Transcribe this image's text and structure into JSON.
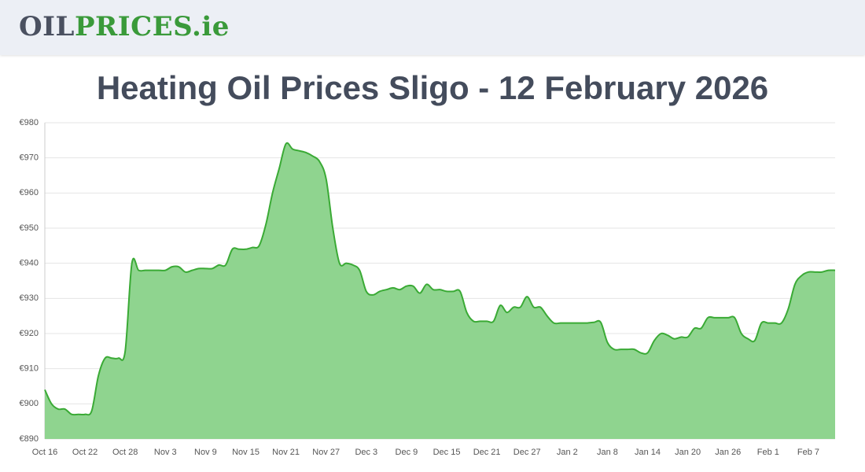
{
  "header": {
    "logo": [
      "OIL",
      "PRICES.ie"
    ]
  },
  "chart_data": {
    "type": "area",
    "title": "Heating Oil Prices Sligo - 12 February 2026",
    "color": "#3aaa35",
    "fill": "#8fd48f",
    "grid": true,
    "ylim": [
      890,
      980
    ],
    "yticks": [
      {
        "value": 890,
        "label": "€890"
      },
      {
        "value": 900,
        "label": "€900"
      },
      {
        "value": 910,
        "label": "€910"
      },
      {
        "value": 920,
        "label": "€920"
      },
      {
        "value": 930,
        "label": "€930"
      },
      {
        "value": 940,
        "label": "€940"
      },
      {
        "value": 950,
        "label": "€950"
      },
      {
        "value": 960,
        "label": "€960"
      },
      {
        "value": 970,
        "label": "€970"
      },
      {
        "value": 980,
        "label": "€980"
      }
    ],
    "categories": [
      "Oct 16",
      null,
      null,
      null,
      null,
      null,
      "Oct 22",
      null,
      null,
      null,
      null,
      null,
      "Oct 28",
      null,
      null,
      null,
      null,
      null,
      "Nov 3",
      null,
      null,
      null,
      null,
      null,
      "Nov 9",
      null,
      null,
      null,
      null,
      null,
      "Nov 15",
      null,
      null,
      null,
      null,
      null,
      "Nov 21",
      null,
      null,
      null,
      null,
      null,
      "Nov 27",
      null,
      null,
      null,
      null,
      null,
      "Dec 3",
      null,
      null,
      null,
      null,
      null,
      "Dec 9",
      null,
      null,
      null,
      null,
      null,
      "Dec 15",
      null,
      null,
      null,
      null,
      null,
      "Dec 21",
      null,
      null,
      null,
      null,
      null,
      "Dec 27",
      null,
      null,
      null,
      null,
      null,
      "Jan 2",
      null,
      null,
      null,
      null,
      null,
      "Jan 8",
      null,
      null,
      null,
      null,
      null,
      "Jan 14",
      null,
      null,
      null,
      null,
      null,
      "Jan 20",
      null,
      null,
      null,
      null,
      null,
      "Jan 26",
      null,
      null,
      null,
      null,
      null,
      "Feb 1",
      null,
      null,
      null,
      null,
      null,
      "Feb 7",
      null,
      null,
      null,
      null
    ],
    "values": [
      904,
      900,
      898.5,
      898.5,
      897,
      897,
      897,
      898,
      908,
      913,
      913,
      913,
      915,
      940,
      938,
      938,
      938,
      938,
      938,
      939,
      939,
      937.5,
      938,
      938.5,
      938.5,
      938.5,
      939.5,
      939.5,
      944,
      944,
      944,
      944.5,
      945,
      951,
      960,
      967,
      974,
      972.5,
      972,
      971.5,
      970.5,
      969,
      964,
      950,
      940,
      940,
      939.5,
      938,
      932,
      931,
      932,
      932.5,
      933,
      932.5,
      933.5,
      933.5,
      931.5,
      934,
      932.5,
      932.5,
      932,
      932,
      932,
      926,
      923.5,
      923.5,
      923.5,
      923.5,
      928,
      926,
      927.5,
      927.5,
      930.5,
      927.5,
      927.5,
      925,
      923,
      923,
      923,
      923,
      923,
      923,
      923.2,
      923.2,
      917.5,
      915.5,
      915.5,
      915.5,
      915.5,
      914.5,
      914.5,
      918,
      920,
      919.5,
      918.5,
      919,
      919,
      921.5,
      921.5,
      924.5,
      924.5,
      924.5,
      924.5,
      924.5,
      920,
      918.5,
      918,
      923,
      923,
      923,
      923,
      927,
      934,
      936.5,
      937.5,
      937.5,
      937.5,
      938,
      938
    ]
  }
}
